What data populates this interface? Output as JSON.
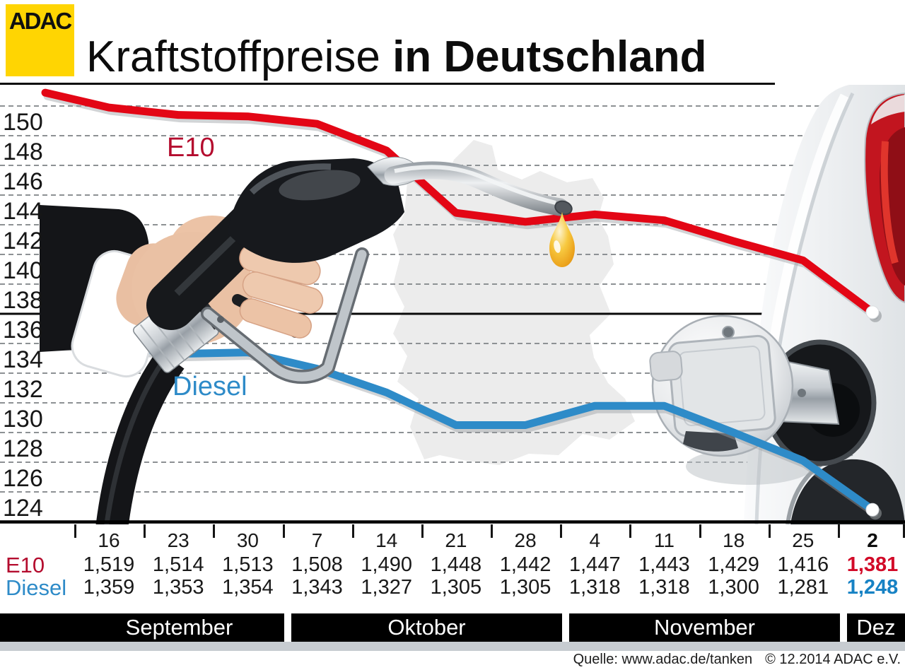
{
  "header": {
    "logo_text": "ADAC",
    "title_light": "Kraftstoffpreise ",
    "title_bold": "in Deutschland"
  },
  "chart_data": {
    "type": "line",
    "title": "Kraftstoffpreise in Deutschland",
    "x_tick_dates": [
      "16",
      "23",
      "30",
      "7",
      "14",
      "21",
      "28",
      "4",
      "11",
      "18",
      "25",
      "2"
    ],
    "months": [
      {
        "label": "September",
        "columns": 3
      },
      {
        "label": "Oktober",
        "columns": 4
      },
      {
        "label": "November",
        "columns": 4
      },
      {
        "label": "Dez",
        "columns": 1
      }
    ],
    "y_axis": {
      "min": 124,
      "max": 152,
      "tick_step": 2,
      "tick_labels": [
        "150",
        "148",
        "146",
        "144",
        "142",
        "140",
        "138",
        "136",
        "134",
        "132",
        "130",
        "128",
        "126",
        "124"
      ],
      "solid_line_at": 138,
      "baseline_at": 124,
      "grid": "dashed"
    },
    "series": [
      {
        "name": "E10",
        "line_color": "#e30615",
        "label_color": "#b40c2e",
        "bold_value_color": "#d20a28",
        "lead_value": 1.529,
        "values": [
          1.519,
          1.514,
          1.513,
          1.508,
          1.49,
          1.448,
          1.442,
          1.447,
          1.443,
          1.429,
          1.416,
          1.381
        ],
        "display": [
          "1,519",
          "1,514",
          "1,513",
          "1,508",
          "1,490",
          "1,448",
          "1,442",
          "1,447",
          "1,443",
          "1,429",
          "1,416",
          "1,381"
        ]
      },
      {
        "name": "Diesel",
        "line_color": "#2e8bc8",
        "label_color": "#2e8bc8",
        "bold_value_color": "#1782c4",
        "lead_value": 1.361,
        "values": [
          1.359,
          1.353,
          1.354,
          1.343,
          1.327,
          1.305,
          1.305,
          1.318,
          1.318,
          1.3,
          1.281,
          1.248
        ],
        "display": [
          "1,359",
          "1,353",
          "1,354",
          "1,343",
          "1,327",
          "1,305",
          "1,305",
          "1,318",
          "1,318",
          "1,300",
          "1,281",
          "1,248"
        ]
      }
    ],
    "legend_position": "inline-labels"
  },
  "footer": {
    "source": "Quelle: www.adac.de/tanken",
    "copyright": "© 12.2014  ADAC e.V."
  }
}
